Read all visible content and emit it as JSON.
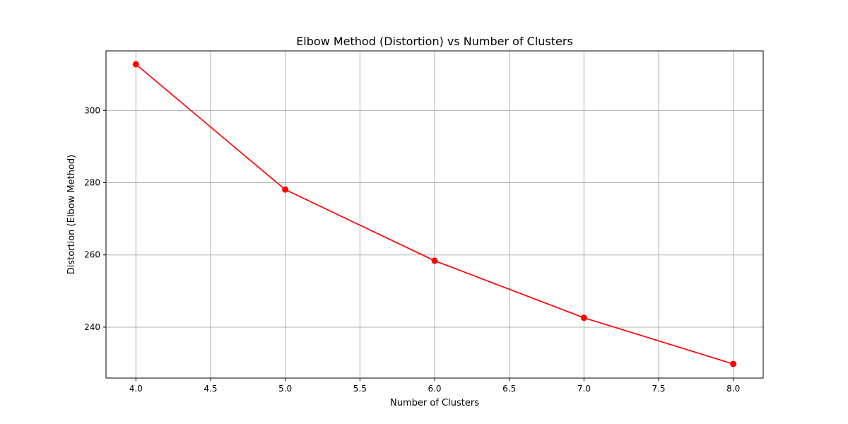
{
  "chart_data": {
    "type": "line",
    "title": "Elbow Method (Distortion) vs Number of Clusters",
    "xlabel": "Number of Clusters",
    "ylabel": "Distortion (Elbow Method)",
    "xlim": [
      3.8,
      8.2
    ],
    "ylim": [
      225.9,
      316.5
    ],
    "xticks": [
      4.0,
      4.5,
      5.0,
      5.5,
      6.0,
      6.5,
      7.0,
      7.5,
      8.0
    ],
    "xtick_labels": [
      "4.0",
      "4.5",
      "5.0",
      "5.5",
      "6.0",
      "6.5",
      "7.0",
      "7.5",
      "8.0"
    ],
    "yticks": [
      240,
      260,
      280,
      300
    ],
    "ytick_labels": [
      "240",
      "260",
      "280",
      "300"
    ],
    "grid": true,
    "legend": false,
    "series": [
      {
        "color": "#ff0000",
        "marker": "circle",
        "x": [
          4,
          5,
          6,
          7,
          8
        ],
        "y": [
          312.8,
          278.1,
          258.4,
          242.6,
          229.8
        ]
      }
    ]
  }
}
